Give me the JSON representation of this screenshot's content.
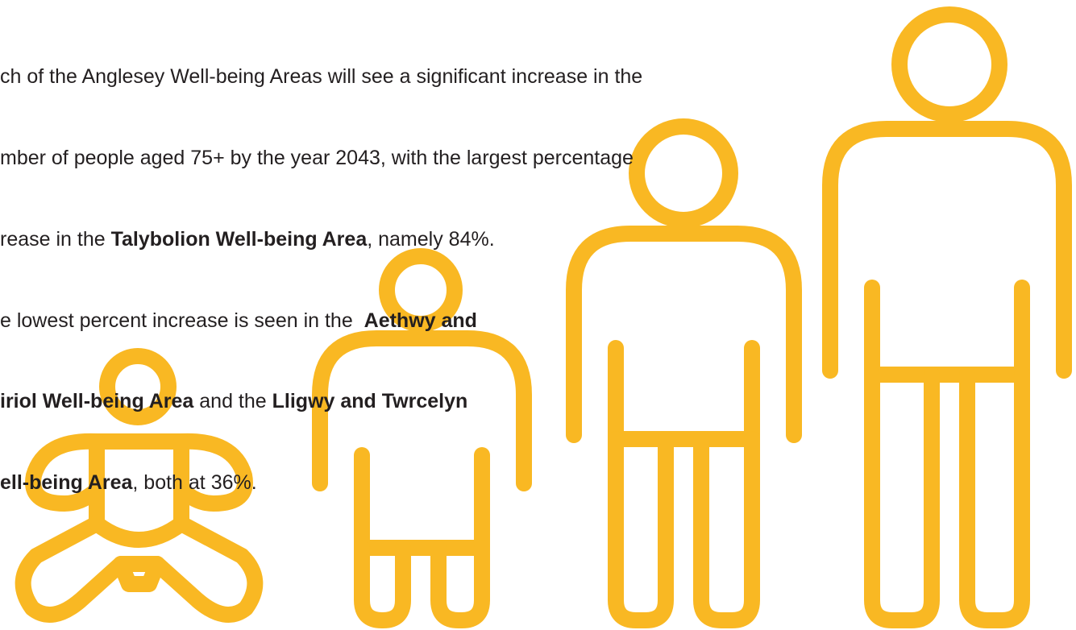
{
  "text": {
    "lines": [
      [
        "ch of the Anglesey Well-being Areas will see a significant increase in the"
      ],
      [
        "mber of people aged 75+ by the year 2043, with the largest percentage"
      ],
      [
        "rease in the ",
        "Talybolion Well-being Area",
        ", namely 84%."
      ],
      [
        "e lowest percent increase is seen in the  ",
        "Aethwy and"
      ],
      [
        "iriol Well-being Area",
        " and the ",
        "Lligwy and Twrcelyn"
      ],
      [
        "ell-being Area",
        ", both at 36%."
      ]
    ]
  }
}
